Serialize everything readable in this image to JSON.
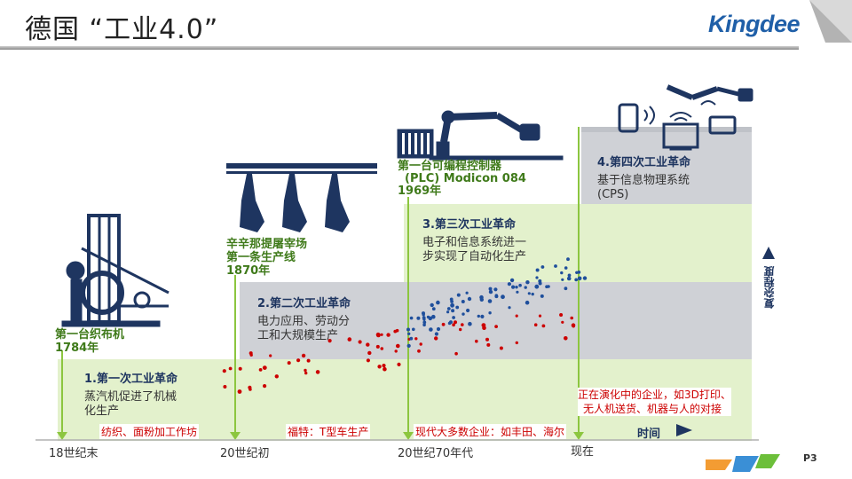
{
  "header": {
    "title": "德国 “工业4.0”",
    "logo": "Kingdee"
  },
  "stages": [
    {
      "title": "1.第一次工业革命",
      "desc": [
        "蒸汽机促进了机械",
        "化生产"
      ]
    },
    {
      "title": "2.第二次工业革命",
      "desc": [
        "电力应用、劳动分",
        "工和大规模生产"
      ]
    },
    {
      "title": "3.第三次工业革命",
      "desc": [
        "电子和信息系统进一",
        "步实现了自动化生产"
      ]
    },
    {
      "title": "4.第四次工业革命",
      "desc": [
        "基于信息物理系统",
        "(CPS)"
      ]
    }
  ],
  "milestones": [
    {
      "lines": [
        "第一台织布机",
        "1784年"
      ]
    },
    {
      "lines": [
        "辛辛那提屠宰场",
        "第一条生产线",
        "1870年"
      ]
    },
    {
      "lines": [
        "第一台可编程控制器",
        "(PLC) Modicon 084",
        "1969年"
      ]
    }
  ],
  "examples": [
    "纺织、面粉加工作坊",
    "福特：T型车生产",
    "现代大多数企业：如丰田、海尔",
    "正在演化中的企业，如3D打印、",
    "无人机送货、机器与人的对接"
  ],
  "axis": {
    "x_label": "时间",
    "y_label": "复杂程度",
    "ticks": [
      "18世纪末",
      "20世纪初",
      "20世纪70年代",
      "现在"
    ]
  },
  "page_number": "P3",
  "colors": {
    "band_green": "#e3f1cc",
    "band_gray": "#cfd1d6",
    "navy": "#1e3560",
    "green_text": "#3f7a1a",
    "red_dot": "#cc0000",
    "blue_dot": "#1f4f9c",
    "guide": "#8cc63f",
    "logo_blue": "#1f5fa8"
  }
}
